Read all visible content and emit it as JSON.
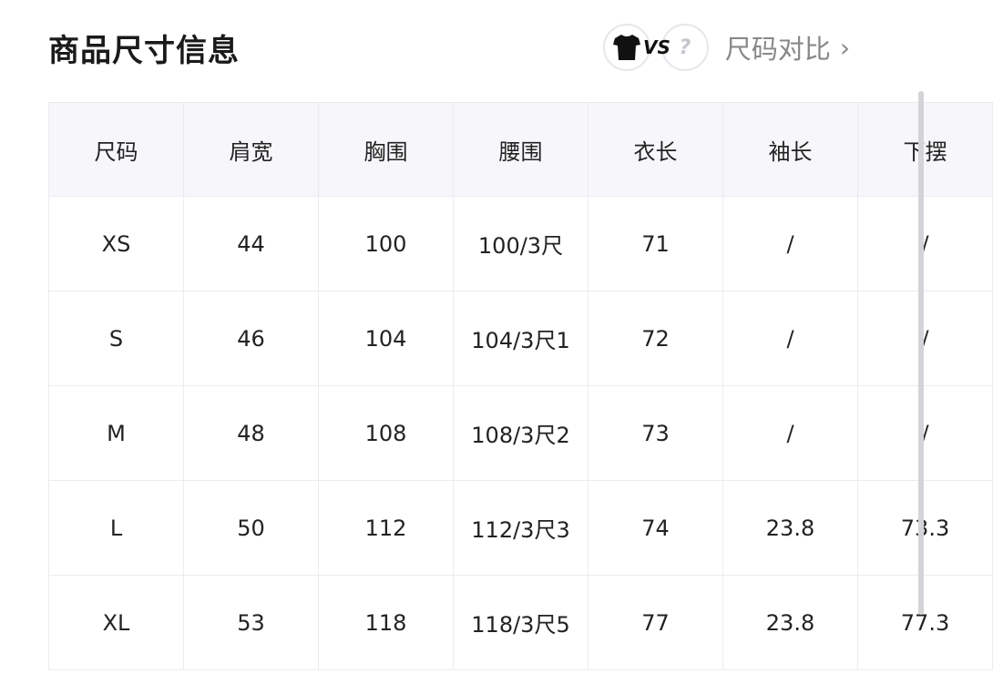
{
  "title": "商品尺寸信息",
  "compare": {
    "vs_text": "VS",
    "unknown_text": "?",
    "label": "尺码对比",
    "chevron": "›",
    "icons": [
      "tshirt-icon",
      "question-icon",
      "chevron-right-icon"
    ]
  },
  "table": {
    "headers": [
      "尺码",
      "肩宽",
      "胸围",
      "腰围",
      "衣长",
      "袖长",
      "下摆"
    ],
    "rows": [
      [
        "XS",
        "44",
        "100",
        "100/3尺",
        "71",
        "/",
        "/"
      ],
      [
        "S",
        "46",
        "104",
        "104/3尺1",
        "72",
        "/",
        "/"
      ],
      [
        "M",
        "48",
        "108",
        "108/3尺2",
        "73",
        "/",
        "/"
      ],
      [
        "L",
        "50",
        "112",
        "112/3尺3",
        "74",
        "23.8",
        "73.3"
      ],
      [
        "XL",
        "53",
        "118",
        "118/3尺5",
        "77",
        "23.8",
        "77.3"
      ]
    ]
  }
}
